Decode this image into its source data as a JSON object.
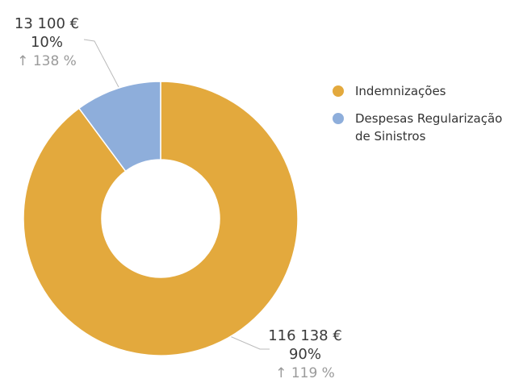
{
  "chart_data": {
    "type": "donut",
    "categories": [
      "Indemnizações",
      "Despesas Regularização de Sinistros"
    ],
    "values": [
      116138,
      13100
    ],
    "value_labels": [
      "116 138 €",
      "13 100 €"
    ],
    "percent_labels": [
      "90%",
      "10%"
    ],
    "change_labels": [
      "↑ 119 %",
      "↑ 138 %"
    ],
    "colors": [
      "#e3a93d",
      "#8eaedb"
    ]
  }
}
